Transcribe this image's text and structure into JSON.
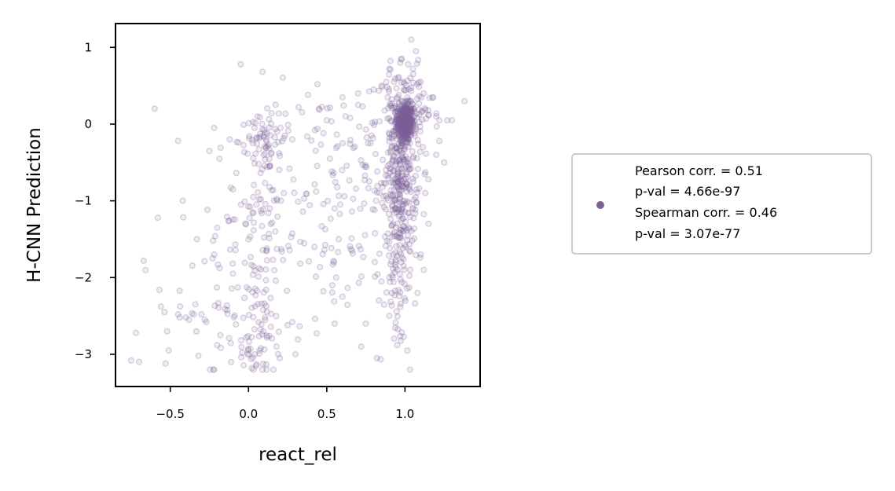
{
  "chart_data": {
    "type": "scatter",
    "title": "",
    "xlabel": "react_rel",
    "ylabel": "H-CNN Prediction",
    "xlim": [
      -0.85,
      1.48
    ],
    "ylim": [
      -3.42,
      1.31
    ],
    "xticks": [
      -0.5,
      0.0,
      0.5,
      1.0
    ],
    "xtick_labels": [
      "−0.5",
      "0.0",
      "0.5",
      "1.0"
    ],
    "yticks": [
      1,
      0,
      -1,
      -2,
      -3
    ],
    "ytick_labels": [
      "1",
      "0",
      "−1",
      "−2",
      "−3"
    ],
    "grid": false,
    "legend_position": "outside-right",
    "color": "#7d6199",
    "point_alpha": 0.22,
    "legend": {
      "lines": [
        "Pearson corr. = 0.51",
        "p-val = 4.66e-97",
        "Spearman corr. = 0.46",
        "p-val = 3.07e-77"
      ]
    },
    "clusters": [
      {
        "cx": 1.0,
        "cy": 0.02,
        "sx": 0.025,
        "sy": 0.12,
        "n": 340
      },
      {
        "cx": 0.98,
        "cy": -0.55,
        "sx": 0.05,
        "sy": 0.55,
        "n": 300
      },
      {
        "cx": 0.95,
        "cy": -1.8,
        "sx": 0.06,
        "sy": 0.6,
        "n": 110
      },
      {
        "cx": 1.0,
        "cy": 0.15,
        "sx": 0.09,
        "sy": 0.28,
        "n": 110
      },
      {
        "cx": 0.12,
        "cy": -0.15,
        "sx": 0.06,
        "sy": 0.22,
        "n": 55
      },
      {
        "cx": 0.05,
        "cy": -1.3,
        "sx": 0.1,
        "sy": 0.75,
        "n": 90
      },
      {
        "cx": 0.05,
        "cy": -2.75,
        "sx": 0.1,
        "sy": 0.3,
        "n": 60
      },
      {
        "cx": 0.45,
        "cy": -1.1,
        "sx": 0.22,
        "sy": 0.8,
        "n": 110
      },
      {
        "cx": -0.3,
        "cy": -2.3,
        "sx": 0.2,
        "sy": 0.5,
        "n": 28
      },
      {
        "cx": 0.75,
        "cy": -0.6,
        "sx": 0.12,
        "sy": 0.5,
        "n": 50
      }
    ],
    "points": [
      [
        -0.75,
        -3.08
      ],
      [
        -0.7,
        -3.1
      ],
      [
        -0.72,
        -2.72
      ],
      [
        -0.67,
        -1.78
      ],
      [
        -0.6,
        0.2
      ],
      [
        -0.58,
        -1.22
      ],
      [
        -0.45,
        -0.22
      ],
      [
        -0.45,
        -2.48
      ],
      [
        -0.44,
        -2.52
      ],
      [
        -0.42,
        -1.0
      ],
      [
        -0.53,
        -3.12
      ],
      [
        -0.51,
        -2.95
      ],
      [
        -0.52,
        -2.7
      ],
      [
        -0.56,
        -2.38
      ],
      [
        -0.4,
        -2.52
      ],
      [
        -0.38,
        -2.55
      ],
      [
        -0.35,
        -2.48
      ],
      [
        -0.33,
        -1.5
      ],
      [
        -0.32,
        -3.02
      ],
      [
        -0.3,
        -2.48
      ],
      [
        -0.28,
        -2.55
      ],
      [
        -0.27,
        -2.58
      ],
      [
        -0.25,
        -0.35
      ],
      [
        -0.22,
        -0.05
      ],
      [
        -0.23,
        -1.75
      ],
      [
        -0.22,
        -1.7
      ],
      [
        -0.2,
        -1.35
      ],
      [
        -0.2,
        -2.88
      ],
      [
        -0.18,
        -2.75
      ],
      [
        -0.12,
        -0.2
      ],
      [
        -0.1,
        -1.95
      ],
      [
        -0.1,
        -0.85
      ],
      [
        0.09,
        0.68
      ],
      [
        -0.05,
        0.78
      ],
      [
        0.04,
        -3.0
      ],
      [
        0.02,
        -3.18
      ],
      [
        0.05,
        -3.15
      ],
      [
        0.07,
        -2.95
      ],
      [
        0.2,
        -3.05
      ],
      [
        0.25,
        -2.62
      ],
      [
        0.28,
        -2.58
      ],
      [
        0.3,
        -3.0
      ],
      [
        0.28,
        -0.2
      ],
      [
        0.32,
        0.22
      ],
      [
        0.38,
        0.38
      ],
      [
        0.45,
        0.2
      ],
      [
        0.44,
        0.52
      ],
      [
        0.5,
        0.05
      ],
      [
        0.52,
        -0.45
      ],
      [
        0.55,
        -1.1
      ],
      [
        0.55,
        -2.6
      ],
      [
        0.6,
        -2.25
      ],
      [
        0.6,
        0.35
      ],
      [
        0.62,
        0.1
      ],
      [
        0.65,
        0.08
      ],
      [
        0.7,
        0.25
      ],
      [
        0.7,
        0.4
      ],
      [
        0.72,
        -2.9
      ],
      [
        0.75,
        -2.6
      ],
      [
        0.78,
        -0.25
      ],
      [
        0.8,
        0.45
      ],
      [
        0.82,
        -3.05
      ],
      [
        0.85,
        0.5
      ],
      [
        0.88,
        0.55
      ],
      [
        0.9,
        0.72
      ],
      [
        0.98,
        0.85
      ],
      [
        0.97,
        0.8
      ],
      [
        1.02,
        0.78
      ],
      [
        1.05,
        0.72
      ],
      [
        1.04,
        1.1
      ],
      [
        1.07,
        0.95
      ],
      [
        1.1,
        0.55
      ],
      [
        1.12,
        0.4
      ],
      [
        1.15,
        0.12
      ],
      [
        1.18,
        0.35
      ],
      [
        1.2,
        0.1
      ],
      [
        1.22,
        0.05
      ],
      [
        1.25,
        -0.5
      ],
      [
        1.27,
        0.05
      ],
      [
        1.3,
        0.05
      ],
      [
        1.38,
        0.3
      ],
      [
        1.22,
        -0.22
      ],
      [
        1.2,
        -0.4
      ],
      [
        1.15,
        -0.72
      ],
      [
        1.13,
        -0.9
      ],
      [
        1.1,
        -1.7
      ],
      [
        1.08,
        -2.2
      ],
      [
        0.95,
        -2.88
      ],
      [
        0.9,
        -2.5
      ],
      [
        1.15,
        -1.3
      ],
      [
        1.12,
        -1.9
      ],
      [
        0.85,
        -2.05
      ]
    ]
  }
}
